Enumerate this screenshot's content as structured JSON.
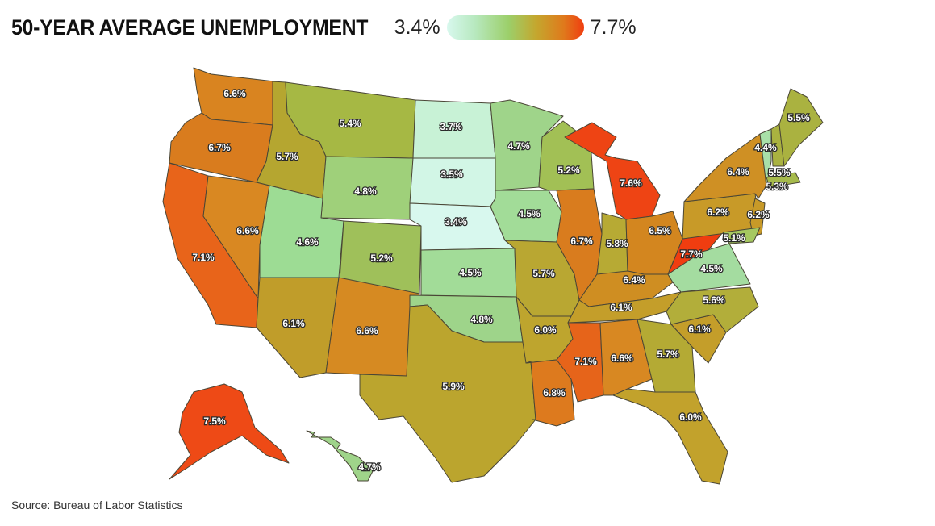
{
  "title": "50-YEAR AVERAGE UNEMPLOYMENT",
  "legend": {
    "min_label": "3.4%",
    "max_label": "7.7%",
    "min_value": 3.4,
    "max_value": 7.7,
    "color_low": "#d8f8ee",
    "color_high": "#f03d10"
  },
  "source": "Source: Bureau of Labor Statistics",
  "states": [
    {
      "state": "WA",
      "label": "6.6%",
      "value": 6.6,
      "color": "#d98420"
    },
    {
      "state": "OR",
      "label": "6.7%",
      "value": 6.7,
      "color": "#d97c1e"
    },
    {
      "state": "CA",
      "label": "7.1%",
      "value": 7.1,
      "color": "#e8641a"
    },
    {
      "state": "NV",
      "label": "6.6%",
      "value": 6.6,
      "color": "#d98822"
    },
    {
      "state": "ID",
      "label": "5.7%",
      "value": 5.7,
      "color": "#b5a630"
    },
    {
      "state": "MT",
      "label": "5.4%",
      "value": 5.4,
      "color": "#a6b844"
    },
    {
      "state": "WY",
      "label": "4.8%",
      "value": 4.8,
      "color": "#9fd07a"
    },
    {
      "state": "UT",
      "label": "4.6%",
      "value": 4.6,
      "color": "#9ddc94"
    },
    {
      "state": "CO",
      "label": "5.2%",
      "value": 5.2,
      "color": "#9fc05a"
    },
    {
      "state": "AZ",
      "label": "6.1%",
      "value": 6.1,
      "color": "#c09d2a"
    },
    {
      "state": "NM",
      "label": "6.6%",
      "value": 6.6,
      "color": "#d68a22"
    },
    {
      "state": "ND",
      "label": "3.7%",
      "value": 3.7,
      "color": "#c8f2d6"
    },
    {
      "state": "SD",
      "label": "3.5%",
      "value": 3.5,
      "color": "#d2f6e6"
    },
    {
      "state": "NE",
      "label": "3.4%",
      "value": 3.4,
      "color": "#d8f8ee"
    },
    {
      "state": "KS",
      "label": "4.5%",
      "value": 4.5,
      "color": "#a2dc98"
    },
    {
      "state": "OK",
      "label": "4.8%",
      "value": 4.8,
      "color": "#9ed48a"
    },
    {
      "state": "TX",
      "label": "5.9%",
      "value": 5.9,
      "color": "#bba52e"
    },
    {
      "state": "MN",
      "label": "4.7%",
      "value": 4.7,
      "color": "#9fd48a"
    },
    {
      "state": "IA",
      "label": "4.5%",
      "value": 4.5,
      "color": "#a2dc98"
    },
    {
      "state": "MO",
      "label": "5.7%",
      "value": 5.7,
      "color": "#b9a732"
    },
    {
      "state": "AR",
      "label": "6.0%",
      "value": 6.0,
      "color": "#bea52e"
    },
    {
      "state": "LA",
      "label": "6.8%",
      "value": 6.8,
      "color": "#dd7a1e"
    },
    {
      "state": "WI",
      "label": "5.2%",
      "value": 5.2,
      "color": "#a2c055"
    },
    {
      "state": "IL",
      "label": "6.7%",
      "value": 6.7,
      "color": "#d97c1e"
    },
    {
      "state": "MI",
      "label": "7.6%",
      "value": 7.6,
      "color": "#ee4414"
    },
    {
      "state": "IN",
      "label": "5.8%",
      "value": 5.8,
      "color": "#b7aa34"
    },
    {
      "state": "OH",
      "label": "6.5%",
      "value": 6.5,
      "color": "#d3861f"
    },
    {
      "state": "KY",
      "label": "6.4%",
      "value": 6.4,
      "color": "#cf8e22"
    },
    {
      "state": "TN",
      "label": "6.1%",
      "value": 6.1,
      "color": "#c49e2a"
    },
    {
      "state": "MS",
      "label": "7.1%",
      "value": 7.1,
      "color": "#e6641a"
    },
    {
      "state": "AL",
      "label": "6.6%",
      "value": 6.6,
      "color": "#d88822"
    },
    {
      "state": "GA",
      "label": "5.7%",
      "value": 5.7,
      "color": "#b4aa34"
    },
    {
      "state": "FL",
      "label": "6.0%",
      "value": 6.0,
      "color": "#c2a22c"
    },
    {
      "state": "SC",
      "label": "6.1%",
      "value": 6.1,
      "color": "#c49e2a"
    },
    {
      "state": "NC",
      "label": "5.6%",
      "value": 5.6,
      "color": "#b2ae3a"
    },
    {
      "state": "VA",
      "label": "4.5%",
      "value": 4.5,
      "color": "#a4dca0"
    },
    {
      "state": "WV",
      "label": "7.7%",
      "value": 7.7,
      "color": "#f03d10"
    },
    {
      "state": "PA",
      "label": "6.2%",
      "value": 6.2,
      "color": "#c89a28"
    },
    {
      "state": "NY",
      "label": "6.4%",
      "value": 6.4,
      "color": "#cf9024"
    },
    {
      "state": "NJ",
      "label": "6.2%",
      "value": 6.2,
      "color": "#c89a28"
    },
    {
      "state": "MD",
      "label": "5.1%",
      "value": 5.1,
      "color": "#a6c860"
    },
    {
      "state": "VT",
      "label": "4.4%",
      "value": 4.4,
      "color": "#a8e0a8"
    },
    {
      "state": "NH",
      "label": "5.5%",
      "value": 5.5,
      "color": "#aab240"
    },
    {
      "state": "MA",
      "label": "5.3%",
      "value": 5.3,
      "color": "#a6ba4c"
    },
    {
      "state": "ME",
      "label": "5.5%",
      "value": 5.5,
      "color": "#aab240"
    },
    {
      "state": "AK",
      "label": "7.5%",
      "value": 7.5,
      "color": "#ee4a16"
    },
    {
      "state": "HI",
      "label": "4.7%",
      "value": 4.7,
      "color": "#9fd48a"
    }
  ]
}
